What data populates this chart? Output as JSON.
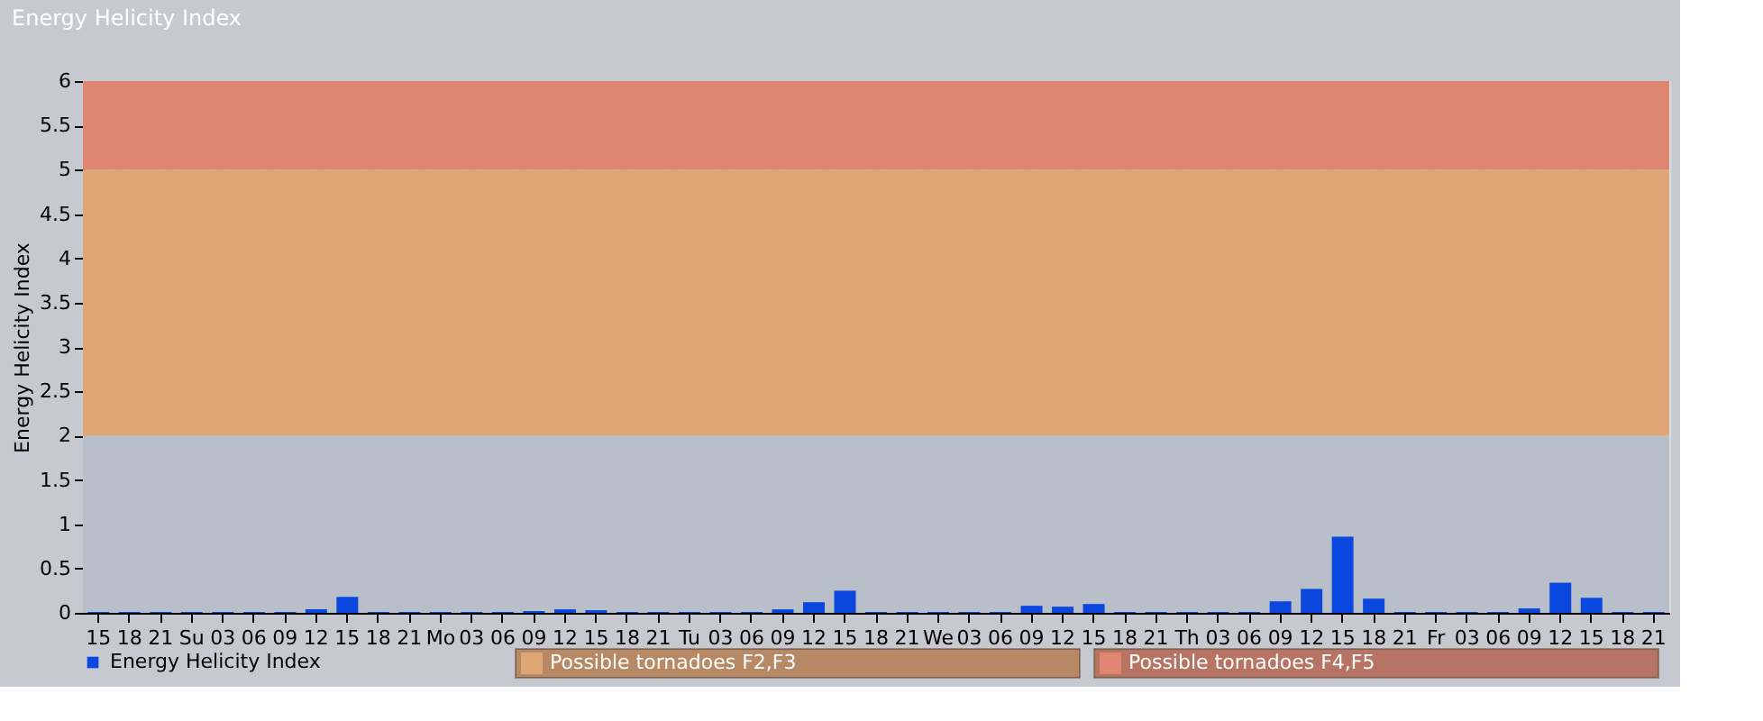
{
  "chart_data": {
    "type": "bar",
    "title": "Energy Helicity Index",
    "ylabel": "Energy Helicity Index",
    "categories": [
      "15",
      "18",
      "21",
      "Su",
      "03",
      "06",
      "09",
      "12",
      "15",
      "18",
      "21",
      "Mo",
      "03",
      "06",
      "09",
      "12",
      "15",
      "18",
      "21",
      "Tu",
      "03",
      "06",
      "09",
      "12",
      "15",
      "18",
      "21",
      "We",
      "03",
      "06",
      "09",
      "12",
      "15",
      "18",
      "21",
      "Th",
      "03",
      "06",
      "09",
      "12",
      "15",
      "18",
      "21",
      "Fr",
      "03",
      "06",
      "09",
      "12",
      "15",
      "18",
      "21"
    ],
    "series": [
      {
        "name": "Energy Helicity Index",
        "color": "#0a47de",
        "values": [
          0.01,
          0.01,
          0.01,
          0.01,
          0.01,
          0.01,
          0.01,
          0.04,
          0.18,
          0.01,
          0.01,
          0.01,
          0.01,
          0.01,
          0.02,
          0.04,
          0.03,
          0.01,
          0.01,
          0.01,
          0.01,
          0.01,
          0.04,
          0.12,
          0.25,
          0.01,
          0.01,
          0.01,
          0.01,
          0.01,
          0.08,
          0.07,
          0.1,
          0.01,
          0.01,
          0.01,
          0.01,
          0.01,
          0.13,
          0.27,
          0.86,
          0.16,
          0.01,
          0.01,
          0.01,
          0.01,
          0.05,
          0.34,
          0.17,
          0.01,
          0.01
        ]
      }
    ],
    "ylim": [
      0,
      6
    ],
    "yticks": [
      0,
      0.5,
      1,
      1.5,
      2,
      2.5,
      3,
      3.5,
      4,
      4.5,
      5,
      5.5,
      6
    ],
    "bands": [
      {
        "axis": "y",
        "from": 0,
        "to": 2,
        "color": "#b8bfc8"
      },
      {
        "axis": "y",
        "from": 2,
        "to": 5,
        "color": "#dfa574",
        "label": "Possible tornadoes F2,F3"
      },
      {
        "axis": "y",
        "from": 5,
        "to": 6,
        "color": "#df8672",
        "label": "Possible tornadoes F4,F5"
      }
    ],
    "grid": true,
    "legend": "bottom left"
  }
}
